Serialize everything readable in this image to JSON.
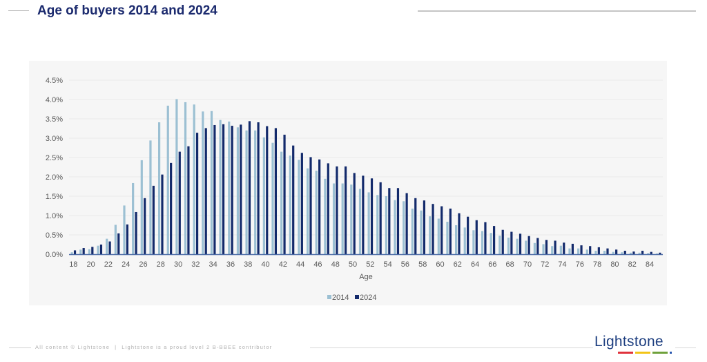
{
  "header": {
    "title": "Age of buyers 2014 and 2024"
  },
  "footer": {
    "copyright": "All content © Lightstone",
    "separator": "|",
    "bbbee": "Lightstone is a proud level 2 B-BBEE contributor"
  },
  "logo": {
    "text": "Lightstone",
    "bar_colors": [
      "#e0323c",
      "#f2c417",
      "#6fa13b",
      "#2a58b0"
    ]
  },
  "colors": {
    "title": "#1b2a6e",
    "series_2014": "#9cc0d3",
    "series_2024": "#132a6b",
    "axis": "#4a6aa5",
    "grid": "#e9e9e9",
    "tick_text": "#595959"
  },
  "chart_data": {
    "type": "bar",
    "title": "Age of buyers 2014 and 2024",
    "xlabel": "Age",
    "ylabel": "",
    "ylim": [
      0,
      4.5
    ],
    "y_unit": "%",
    "y_ticks": [
      "0.0%",
      "0.5%",
      "1.0%",
      "1.5%",
      "2.0%",
      "2.5%",
      "3.0%",
      "3.5%",
      "4.0%",
      "4.5%"
    ],
    "y_tick_values": [
      0,
      0.5,
      1.0,
      1.5,
      2.0,
      2.5,
      3.0,
      3.5,
      4.0,
      4.5
    ],
    "grid": true,
    "legend_position": "bottom",
    "categories": [
      18,
      19,
      20,
      21,
      22,
      23,
      24,
      25,
      26,
      27,
      28,
      29,
      30,
      31,
      32,
      33,
      34,
      35,
      36,
      37,
      38,
      39,
      40,
      41,
      42,
      43,
      44,
      45,
      46,
      47,
      48,
      49,
      50,
      51,
      52,
      53,
      54,
      55,
      56,
      57,
      58,
      59,
      60,
      61,
      62,
      63,
      64,
      65,
      66,
      67,
      68,
      69,
      70,
      71,
      72,
      73,
      74,
      75,
      76,
      77,
      78,
      79,
      80,
      81,
      82,
      83,
      84,
      85
    ],
    "x_tick_labels": [
      "18",
      "20",
      "22",
      "24",
      "26",
      "28",
      "30",
      "32",
      "34",
      "36",
      "38",
      "40",
      "42",
      "44",
      "46",
      "48",
      "50",
      "52",
      "54",
      "56",
      "58",
      "60",
      "62",
      "64",
      "66",
      "68",
      "70",
      "72",
      "74",
      "76",
      "78",
      "80",
      "82",
      "84"
    ],
    "series": [
      {
        "name": "2014",
        "values": [
          0.05,
          0.12,
          0.13,
          0.22,
          0.4,
          0.76,
          1.26,
          1.84,
          2.43,
          2.94,
          3.41,
          3.84,
          4.01,
          3.93,
          3.87,
          3.69,
          3.7,
          3.47,
          3.43,
          3.28,
          3.2,
          3.2,
          3.02,
          2.88,
          2.65,
          2.55,
          2.44,
          2.22,
          2.16,
          1.95,
          1.83,
          1.83,
          1.8,
          1.69,
          1.6,
          1.53,
          1.5,
          1.4,
          1.37,
          1.18,
          1.13,
          0.98,
          0.92,
          0.84,
          0.75,
          0.69,
          0.62,
          0.6,
          0.55,
          0.48,
          0.43,
          0.4,
          0.35,
          0.29,
          0.26,
          0.21,
          0.22,
          0.15,
          0.15,
          0.12,
          0.09,
          0.09,
          0.06,
          0.05,
          0.04,
          0.04,
          0.03,
          0.02
        ]
      },
      {
        "name": "2024",
        "values": [
          0.1,
          0.16,
          0.19,
          0.25,
          0.33,
          0.54,
          0.77,
          1.09,
          1.45,
          1.77,
          2.06,
          2.36,
          2.65,
          2.79,
          3.14,
          3.26,
          3.34,
          3.36,
          3.32,
          3.35,
          3.44,
          3.41,
          3.31,
          3.26,
          3.09,
          2.81,
          2.62,
          2.51,
          2.45,
          2.35,
          2.27,
          2.27,
          2.1,
          2.03,
          1.96,
          1.86,
          1.71,
          1.71,
          1.58,
          1.45,
          1.39,
          1.3,
          1.24,
          1.18,
          1.06,
          0.97,
          0.88,
          0.83,
          0.73,
          0.63,
          0.58,
          0.53,
          0.47,
          0.42,
          0.37,
          0.35,
          0.3,
          0.27,
          0.23,
          0.21,
          0.18,
          0.15,
          0.12,
          0.09,
          0.07,
          0.09,
          0.06,
          0.04
        ]
      }
    ]
  }
}
